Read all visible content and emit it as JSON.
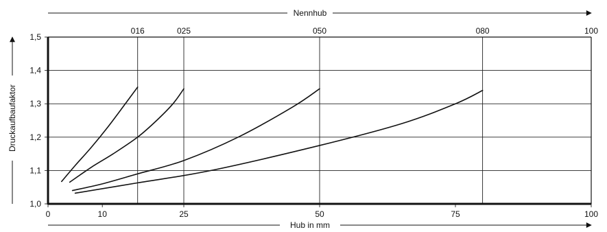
{
  "chart_data": {
    "type": "line",
    "title": "",
    "xlabel": "Hub in mm",
    "ylabel": "Druckaufbaufaktor",
    "top_axis_label": "Nennhub",
    "xlim": [
      0,
      100
    ],
    "ylim": [
      1.0,
      1.5
    ],
    "x_ticks": [
      {
        "value": 0,
        "label": "0"
      },
      {
        "value": 10,
        "label": "10"
      },
      {
        "value": 25,
        "label": "25"
      },
      {
        "value": 50,
        "label": "50"
      },
      {
        "value": 75,
        "label": "75"
      },
      {
        "value": 100,
        "label": "100"
      }
    ],
    "top_ticks": [
      {
        "value": 16.5,
        "label": "016"
      },
      {
        "value": 25,
        "label": "025"
      },
      {
        "value": 50,
        "label": "050"
      },
      {
        "value": 80,
        "label": "080"
      },
      {
        "value": 100,
        "label": "100"
      }
    ],
    "y_ticks": [
      {
        "value": 1.0,
        "label": "1,0"
      },
      {
        "value": 1.1,
        "label": "1,1"
      },
      {
        "value": 1.2,
        "label": "1,2"
      },
      {
        "value": 1.3,
        "label": "1,3"
      },
      {
        "value": 1.4,
        "label": "1,4"
      },
      {
        "value": 1.5,
        "label": "1,5"
      }
    ],
    "vertical_lines": [
      16.5,
      25,
      50,
      80
    ],
    "grid": true,
    "series": [
      {
        "x": [
          2.5,
          5,
          8,
          11,
          14,
          16.5
        ],
        "y": [
          1.067,
          1.115,
          1.17,
          1.23,
          1.295,
          1.35
        ]
      },
      {
        "x": [
          4,
          8,
          12,
          16.5,
          20,
          23,
          25
        ],
        "y": [
          1.065,
          1.11,
          1.15,
          1.2,
          1.25,
          1.3,
          1.345
        ]
      },
      {
        "x": [
          4.5,
          10,
          16.5,
          25,
          35,
          45,
          50
        ],
        "y": [
          1.04,
          1.06,
          1.09,
          1.13,
          1.2,
          1.29,
          1.345
        ]
      },
      {
        "x": [
          5,
          16.5,
          30,
          50,
          65,
          75,
          80
        ],
        "y": [
          1.032,
          1.063,
          1.1,
          1.175,
          1.24,
          1.3,
          1.34
        ]
      }
    ]
  }
}
